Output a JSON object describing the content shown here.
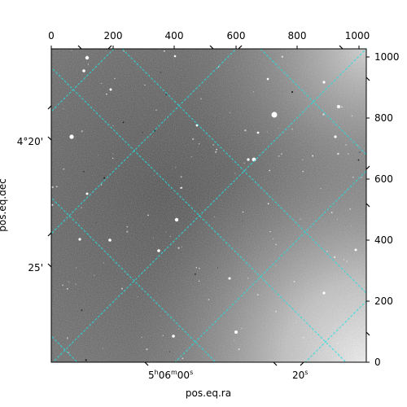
{
  "figure": {
    "xlabel": "pos.eq.ra",
    "ylabel": "pos.eq.dec",
    "pixel_ticks_top": [
      "0",
      "200",
      "400",
      "600",
      "800",
      "1000"
    ],
    "pixel_ticks_right": [
      "0",
      "200",
      "400",
      "600",
      "800",
      "1000"
    ],
    "ra_ticks": [
      {
        "h": "5",
        "m": "06",
        "s": "00",
        "label_s_only": false
      },
      {
        "s": "20",
        "label_s_only": true
      }
    ],
    "dec_ticks": [
      "4°20'",
      "25'"
    ],
    "ra_value_labels": [
      "5h06m00s",
      "20s"
    ],
    "colors": {
      "grid": "#20e0e0",
      "frame": "#000000",
      "background": "#ffffff"
    },
    "image": {
      "type": "grayscale-sky-field",
      "stars": true,
      "vignetting": "bright-corners-right"
    }
  }
}
